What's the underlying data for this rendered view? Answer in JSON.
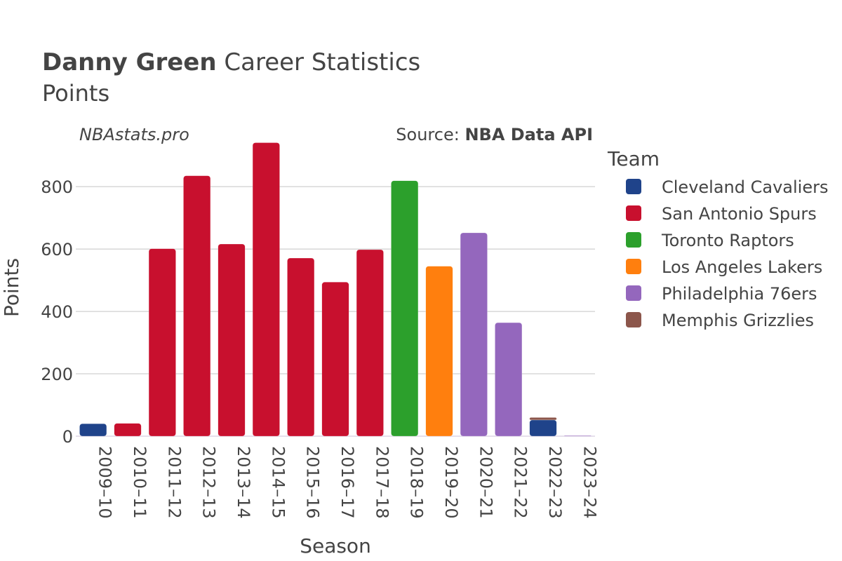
{
  "header": {
    "title_bold": "Danny Green",
    "title_rest": " Career Statistics",
    "subtitle": "Points",
    "watermark": "NBAstats.pro",
    "source_prefix": "Source: ",
    "source_name": "NBA Data API"
  },
  "legend": {
    "title": "Team",
    "items": [
      {
        "name": "Cleveland Cavaliers",
        "color": "#1f438a"
      },
      {
        "name": "San Antonio Spurs",
        "color": "#c8102e"
      },
      {
        "name": "Toronto Raptors",
        "color": "#2ca02c"
      },
      {
        "name": "Los Angeles Lakers",
        "color": "#ff7f0e"
      },
      {
        "name": "Philadelphia 76ers",
        "color": "#9467bd"
      },
      {
        "name": "Memphis Grizzlies",
        "color": "#8c564b"
      }
    ]
  },
  "chart_data": {
    "type": "bar",
    "stacked": true,
    "title": "Danny Green Career Statistics",
    "subtitle": "Points",
    "xlabel": "Season",
    "ylabel": "Points",
    "ylim": [
      0,
      960
    ],
    "yticks": [
      0,
      200,
      400,
      600,
      800
    ],
    "grid": true,
    "legend_position": "right",
    "categories": [
      "2009–10",
      "2010–11",
      "2011–12",
      "2012–13",
      "2013–14",
      "2014–15",
      "2015–16",
      "2016–17",
      "2017–18",
      "2018–19",
      "2019–20",
      "2020–21",
      "2021–22",
      "2022–23",
      "2023–24"
    ],
    "series": [
      {
        "name": "Cleveland Cavaliers",
        "values": [
          40,
          0,
          0,
          0,
          0,
          0,
          0,
          0,
          0,
          0,
          0,
          0,
          0,
          52,
          0
        ]
      },
      {
        "name": "San Antonio Spurs",
        "values": [
          0,
          41,
          601,
          835,
          616,
          941,
          571,
          494,
          598,
          0,
          0,
          0,
          0,
          0,
          0
        ]
      },
      {
        "name": "Toronto Raptors",
        "values": [
          0,
          0,
          0,
          0,
          0,
          0,
          0,
          0,
          0,
          819,
          0,
          0,
          0,
          0,
          0
        ]
      },
      {
        "name": "Los Angeles Lakers",
        "values": [
          0,
          0,
          0,
          0,
          0,
          0,
          0,
          0,
          0,
          0,
          545,
          0,
          0,
          0,
          0
        ]
      },
      {
        "name": "Philadelphia 76ers",
        "values": [
          0,
          0,
          0,
          0,
          0,
          0,
          0,
          0,
          0,
          0,
          0,
          652,
          364,
          0,
          2
        ]
      },
      {
        "name": "Memphis Grizzlies",
        "values": [
          0,
          0,
          0,
          0,
          0,
          0,
          0,
          0,
          0,
          0,
          0,
          0,
          0,
          8,
          0
        ]
      }
    ]
  }
}
